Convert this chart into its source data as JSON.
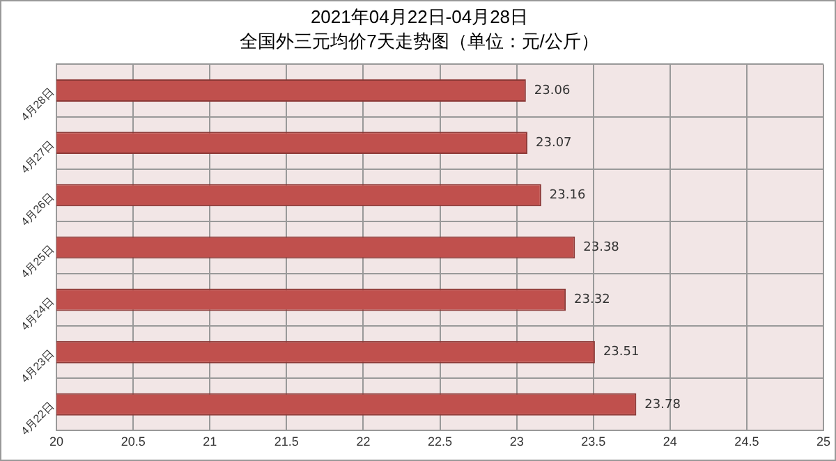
{
  "chart_data": {
    "type": "bar",
    "orientation": "horizontal",
    "title": "2021年04月22日-04月28日",
    "subtitle": "全国外三元均价7天走势图（单位：元/公斤）",
    "categories": [
      "4月28日",
      "4月27日",
      "4月26日",
      "4月25日",
      "4月24日",
      "4月23日",
      "4月22日"
    ],
    "values": [
      23.06,
      23.07,
      23.16,
      23.38,
      23.32,
      23.51,
      23.78
    ],
    "color": "#c0504d",
    "xlim": [
      20,
      25
    ],
    "xticks": [
      20,
      20.5,
      21,
      21.5,
      22,
      22.5,
      23,
      23.5,
      24,
      24.5,
      25
    ],
    "grid": true,
    "data_labels": true
  }
}
